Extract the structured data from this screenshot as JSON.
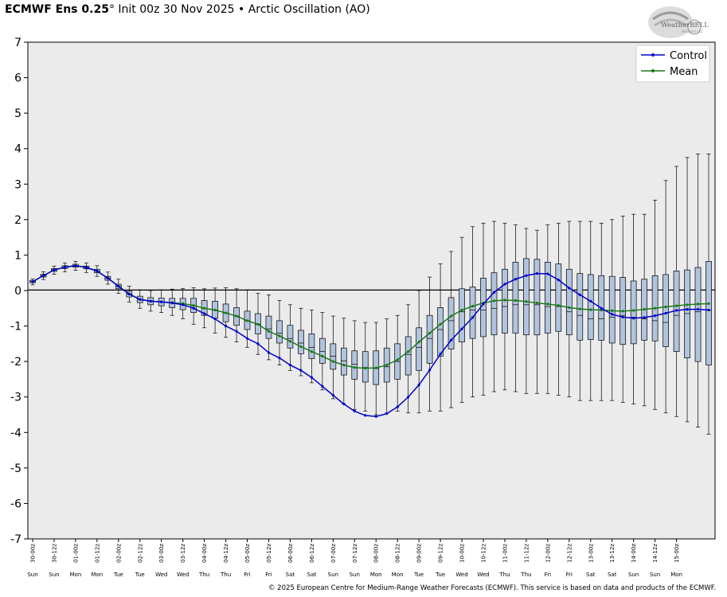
{
  "header": {
    "model": "ECMWF Ens 0.25",
    "degree": "°",
    "init": "Init 00z 30 Nov 2025",
    "bullet": "•",
    "index_name": "Arctic Oscillation (AO)"
  },
  "logo": {
    "text": "WeatherBELL",
    "sub": "Analytics LLC"
  },
  "footer": "© 2025 European Centre for Medium-Range Weather Forecasts (ECMWF). This service is based on data and products of the ECMWF.",
  "colors": {
    "control": "#0000cc",
    "mean": "#1a7a1a",
    "box_fill": "#b0c4de",
    "plot_bg": "#ebebeb"
  },
  "chart_data": {
    "type": "box",
    "ylim": [
      -7,
      7
    ],
    "yticks": [
      7,
      6,
      5,
      4,
      3,
      2,
      1,
      0,
      -1,
      -2,
      -3,
      -4,
      -5,
      -6,
      -7
    ],
    "grid": false,
    "legend_position": "top-right",
    "categories": [
      "30-00z",
      "30-12z",
      "01-00z",
      "01-12z",
      "02-00z",
      "02-12z",
      "03-00z",
      "03-12z",
      "04-00z",
      "04-12z",
      "05-00z",
      "05-12z",
      "06-00z",
      "06-12z",
      "07-00z",
      "07-12z",
      "08-00z",
      "08-12z",
      "09-00z",
      "09-12z",
      "10-00z",
      "10-12z",
      "11-00z",
      "11-12z",
      "12-00z",
      "12-12z",
      "13-00z",
      "13-12z",
      "14-00z",
      "14-12z",
      "15-00z"
    ],
    "day_labels": [
      "Sun",
      "Sun",
      "Mon",
      "Mon",
      "Tue",
      "Tue",
      "Wed",
      "Wed",
      "Thu",
      "Thu",
      "Fri",
      "Fri",
      "Sat",
      "Sat",
      "Sun",
      "Sun",
      "Mon",
      "Mon",
      "Tue",
      "Tue",
      "Wed",
      "Wed",
      "Thu",
      "Thu",
      "Fri",
      "Fri",
      "Sat",
      "Sat",
      "Sun",
      "Sun",
      "Mon"
    ],
    "series": [
      {
        "name": "Control",
        "values": [
          0.25,
          0.42,
          0.58,
          0.66,
          0.7,
          0.65,
          0.55,
          0.35,
          0.12,
          -0.1,
          -0.25,
          -0.3,
          -0.32,
          -0.35,
          -0.4,
          -0.5,
          -0.65,
          -0.8,
          -1.0,
          -1.15,
          -1.35,
          -1.5,
          -1.75,
          -1.9,
          -2.1,
          -2.25,
          -2.45,
          -2.7,
          -2.95,
          -3.2,
          -3.4,
          -3.52,
          -3.55,
          -3.47,
          -3.28,
          -3.0,
          -2.66,
          -2.24,
          -1.79,
          -1.4,
          -1.08,
          -0.76,
          -0.38,
          -0.05,
          0.18,
          0.32,
          0.42,
          0.48,
          0.47,
          0.3,
          0.07,
          -0.12,
          -0.3,
          -0.5,
          -0.67,
          -0.75,
          -0.78,
          -0.76,
          -0.71,
          -0.64,
          -0.56,
          -0.53,
          -0.53,
          -0.55
        ]
      },
      {
        "name": "Mean",
        "values": [
          0.25,
          0.42,
          0.58,
          0.66,
          0.7,
          0.65,
          0.55,
          0.35,
          0.12,
          -0.1,
          -0.25,
          -0.3,
          -0.32,
          -0.34,
          -0.37,
          -0.42,
          -0.5,
          -0.55,
          -0.63,
          -0.72,
          -0.85,
          -0.95,
          -1.15,
          -1.28,
          -1.43,
          -1.58,
          -1.72,
          -1.85,
          -2.0,
          -2.1,
          -2.17,
          -2.19,
          -2.18,
          -2.1,
          -1.95,
          -1.72,
          -1.45,
          -1.2,
          -0.95,
          -0.72,
          -0.55,
          -0.44,
          -0.35,
          -0.29,
          -0.27,
          -0.28,
          -0.31,
          -0.35,
          -0.38,
          -0.42,
          -0.48,
          -0.52,
          -0.54,
          -0.55,
          -0.57,
          -0.58,
          -0.56,
          -0.53,
          -0.5,
          -0.46,
          -0.43,
          -0.4,
          -0.38,
          -0.37
        ]
      }
    ],
    "boxes": [
      [
        0.16,
        0.22,
        0.25,
        0.28,
        0.33
      ],
      [
        0.31,
        0.38,
        0.42,
        0.46,
        0.53
      ],
      [
        0.46,
        0.54,
        0.58,
        0.62,
        0.69
      ],
      [
        0.53,
        0.62,
        0.66,
        0.7,
        0.78
      ],
      [
        0.57,
        0.66,
        0.7,
        0.74,
        0.82
      ],
      [
        0.51,
        0.61,
        0.65,
        0.69,
        0.78
      ],
      [
        0.4,
        0.5,
        0.55,
        0.6,
        0.7
      ],
      [
        0.18,
        0.29,
        0.35,
        0.4,
        0.52
      ],
      [
        -0.08,
        0.05,
        0.12,
        0.18,
        0.32
      ],
      [
        -0.32,
        -0.18,
        -0.1,
        -0.02,
        0.12
      ],
      [
        -0.5,
        -0.34,
        -0.25,
        -0.16,
        0.02
      ],
      [
        -0.58,
        -0.4,
        -0.3,
        -0.2,
        0.0
      ],
      [
        -0.62,
        -0.43,
        -0.32,
        -0.21,
        0.02
      ],
      [
        -0.7,
        -0.48,
        -0.34,
        -0.22,
        0.04
      ],
      [
        -0.8,
        -0.54,
        -0.38,
        -0.22,
        0.06
      ],
      [
        -0.95,
        -0.62,
        -0.43,
        -0.22,
        0.08
      ],
      [
        -1.05,
        -0.7,
        -0.5,
        -0.28,
        0.05
      ],
      [
        -1.2,
        -0.78,
        -0.55,
        -0.3,
        0.07
      ],
      [
        -1.32,
        -0.88,
        -0.63,
        -0.38,
        0.08
      ],
      [
        -1.45,
        -0.98,
        -0.72,
        -0.48,
        0.05
      ],
      [
        -1.6,
        -1.1,
        -0.85,
        -0.58,
        0.02
      ],
      [
        -1.8,
        -1.22,
        -0.95,
        -0.65,
        -0.08
      ],
      [
        -1.95,
        -1.35,
        -1.08,
        -0.72,
        -0.12
      ],
      [
        -2.1,
        -1.48,
        -1.2,
        -0.85,
        -0.28
      ],
      [
        -2.25,
        -1.62,
        -1.35,
        -0.98,
        -0.4
      ],
      [
        -2.4,
        -1.78,
        -1.48,
        -1.12,
        -0.5
      ],
      [
        -2.6,
        -1.92,
        -1.6,
        -1.22,
        -0.55
      ],
      [
        -2.8,
        -2.05,
        -1.72,
        -1.35,
        -0.62
      ],
      [
        -3.05,
        -2.22,
        -1.85,
        -1.5,
        -0.72
      ],
      [
        -3.2,
        -2.38,
        -1.98,
        -1.62,
        -0.78
      ],
      [
        -3.35,
        -2.5,
        -2.08,
        -1.7,
        -0.85
      ],
      [
        -3.4,
        -2.58,
        -2.17,
        -1.72,
        -0.9
      ],
      [
        -3.5,
        -2.65,
        -2.2,
        -1.7,
        -0.9
      ],
      [
        -3.45,
        -2.58,
        -2.15,
        -1.62,
        -0.8
      ],
      [
        -3.4,
        -2.5,
        -2.0,
        -1.5,
        -0.7
      ],
      [
        -3.45,
        -2.38,
        -1.8,
        -1.3,
        -0.4
      ],
      [
        -3.45,
        -2.25,
        -1.6,
        -1.05,
        0.0
      ],
      [
        -3.4,
        -2.05,
        -1.35,
        -0.7,
        0.38
      ],
      [
        -3.4,
        -1.85,
        -1.1,
        -0.48,
        0.75
      ],
      [
        -3.3,
        -1.65,
        -0.85,
        -0.2,
        1.1
      ],
      [
        -3.15,
        -1.45,
        -0.6,
        0.05,
        1.5
      ],
      [
        -3.0,
        -1.35,
        -0.55,
        0.1,
        1.8
      ],
      [
        -2.95,
        -1.3,
        -0.55,
        0.35,
        1.9
      ],
      [
        -2.85,
        -1.25,
        -0.5,
        0.5,
        1.95
      ],
      [
        -2.8,
        -1.2,
        -0.45,
        0.6,
        1.9
      ],
      [
        -2.85,
        -1.2,
        -0.4,
        0.8,
        1.85
      ],
      [
        -2.9,
        -1.25,
        -0.4,
        0.9,
        1.75
      ],
      [
        -2.9,
        -1.25,
        -0.4,
        0.88,
        1.7
      ],
      [
        -2.9,
        -1.2,
        -0.45,
        0.8,
        1.85
      ],
      [
        -2.95,
        -1.15,
        -0.45,
        0.75,
        1.9
      ],
      [
        -3.0,
        -1.25,
        -0.6,
        0.6,
        1.95
      ],
      [
        -3.1,
        -1.4,
        -0.7,
        0.48,
        1.95
      ],
      [
        -3.1,
        -1.38,
        -0.8,
        0.45,
        1.95
      ],
      [
        -3.1,
        -1.4,
        -0.8,
        0.42,
        1.9
      ],
      [
        -3.1,
        -1.48,
        -0.75,
        0.4,
        2.0
      ],
      [
        -3.15,
        -1.52,
        -0.7,
        0.37,
        2.1
      ],
      [
        -3.2,
        -1.5,
        -0.75,
        0.27,
        2.15
      ],
      [
        -3.25,
        -1.4,
        -0.8,
        0.32,
        2.15
      ],
      [
        -3.35,
        -1.42,
        -0.85,
        0.42,
        2.55
      ],
      [
        -3.45,
        -1.58,
        -0.9,
        0.45,
        3.1
      ],
      [
        -3.55,
        -1.72,
        -0.7,
        0.55,
        3.5
      ],
      [
        -3.7,
        -1.9,
        -0.65,
        0.58,
        3.75
      ],
      [
        -3.85,
        -2.0,
        -0.6,
        0.65,
        3.85
      ],
      [
        -4.05,
        -2.1,
        -0.55,
        0.82,
        3.85
      ]
    ]
  }
}
